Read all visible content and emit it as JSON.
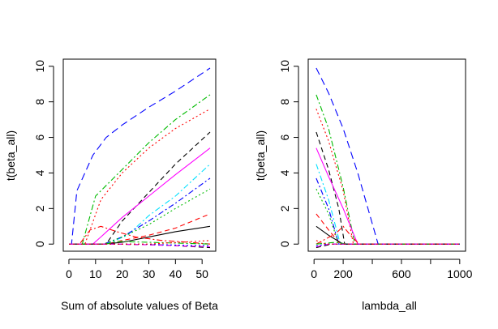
{
  "chart_data": [
    {
      "type": "line",
      "title": "",
      "xlabel": "Sum of absolute values of Beta",
      "ylabel": "t(beta_all)",
      "xlim": [
        0,
        53
      ],
      "ylim": [
        0,
        10
      ],
      "xticks": [
        0,
        10,
        20,
        30,
        40,
        50
      ],
      "yticks": [
        0,
        2,
        4,
        6,
        8,
        10
      ],
      "grid": false,
      "legend": "none",
      "series": [
        {
          "color": "#0000ff",
          "dash": "long",
          "points": [
            [
              0,
              0
            ],
            [
              1,
              0
            ],
            [
              3,
              3
            ],
            [
              6,
              4
            ],
            [
              9,
              5
            ],
            [
              14,
              6
            ],
            [
              20,
              6.7
            ],
            [
              30,
              7.7
            ],
            [
              40,
              8.6
            ],
            [
              53,
              9.9
            ]
          ]
        },
        {
          "color": "#00bb00",
          "dash": "dashdot",
          "points": [
            [
              0,
              0
            ],
            [
              5,
              0
            ],
            [
              10,
              2.7
            ],
            [
              20,
              4.2
            ],
            [
              30,
              5.7
            ],
            [
              40,
              7
            ],
            [
              53,
              8.4
            ]
          ]
        },
        {
          "color": "#ff0000",
          "dash": "dot",
          "points": [
            [
              0,
              0
            ],
            [
              6,
              0
            ],
            [
              12,
              2.5
            ],
            [
              20,
              4
            ],
            [
              30,
              5.4
            ],
            [
              40,
              6.5
            ],
            [
              53,
              7.6
            ]
          ]
        },
        {
          "color": "#000000",
          "dash": "dash",
          "points": [
            [
              0,
              0
            ],
            [
              14,
              0
            ],
            [
              20,
              1.3
            ],
            [
              30,
              2.9
            ],
            [
              40,
              4.5
            ],
            [
              53,
              6.3
            ]
          ]
        },
        {
          "color": "#ff00ff",
          "dash": "solid",
          "points": [
            [
              0,
              0
            ],
            [
              9,
              0
            ],
            [
              12,
              0.4
            ],
            [
              20,
              1.5
            ],
            [
              30,
              2.7
            ],
            [
              40,
              3.9
            ],
            [
              53,
              5.4
            ]
          ]
        },
        {
          "color": "#00e0ff",
          "dash": "dashdot",
          "points": [
            [
              0,
              0
            ],
            [
              14,
              0
            ],
            [
              22,
              0.5
            ],
            [
              30,
              1.6
            ],
            [
              40,
              2.7
            ],
            [
              53,
              4.5
            ]
          ]
        },
        {
          "color": "#0000ff",
          "dash": "dashdot",
          "points": [
            [
              0,
              0
            ],
            [
              13,
              0
            ],
            [
              20,
              0.4
            ],
            [
              30,
              1.3
            ],
            [
              40,
              2.3
            ],
            [
              53,
              3.7
            ]
          ]
        },
        {
          "color": "#00bb00",
          "dash": "dot",
          "points": [
            [
              0,
              0
            ],
            [
              13,
              0
            ],
            [
              20,
              0.4
            ],
            [
              30,
              1.1
            ],
            [
              40,
              2
            ],
            [
              53,
              3.1
            ]
          ]
        },
        {
          "color": "#ff0000",
          "dash": "dash",
          "points": [
            [
              0,
              0
            ],
            [
              14,
              0
            ],
            [
              20,
              0.2
            ],
            [
              30,
              0.5
            ],
            [
              40,
              0.9
            ],
            [
              53,
              1.7
            ]
          ]
        },
        {
          "color": "#000000",
          "dash": "solid",
          "points": [
            [
              0,
              0
            ],
            [
              13,
              0
            ],
            [
              20,
              0.1
            ],
            [
              30,
              0.4
            ],
            [
              40,
              0.7
            ],
            [
              53,
              1
            ]
          ]
        },
        {
          "color": "#ff0000",
          "dash": "dashdot",
          "points": [
            [
              0,
              0
            ],
            [
              4,
              0
            ],
            [
              8,
              0.8
            ],
            [
              12,
              1
            ],
            [
              18,
              0.7
            ],
            [
              25,
              0.4
            ],
            [
              35,
              0.2
            ],
            [
              45,
              0.1
            ],
            [
              53,
              0
            ]
          ]
        },
        {
          "color": "#00bb00",
          "dash": "dashdot",
          "points": [
            [
              0,
              0
            ],
            [
              14,
              0
            ],
            [
              18,
              0.15
            ],
            [
              30,
              0.1
            ],
            [
              53,
              0
            ]
          ]
        },
        {
          "color": "#000000",
          "dash": "dash",
          "points": [
            [
              0,
              0
            ],
            [
              15,
              0
            ],
            [
              35,
              -0.05
            ],
            [
              53,
              -0.2
            ]
          ]
        },
        {
          "color": "#ff00ff",
          "dash": "dash",
          "points": [
            [
              0,
              0
            ],
            [
              20,
              0
            ],
            [
              53,
              -0.15
            ]
          ]
        },
        {
          "color": "#0000ff",
          "dash": "dot",
          "points": [
            [
              0,
              0
            ],
            [
              25,
              0
            ],
            [
              53,
              -0.1
            ]
          ]
        },
        {
          "color": "#ff0000",
          "dash": "dot",
          "points": [
            [
              0,
              0
            ],
            [
              30,
              0
            ],
            [
              53,
              0.2
            ]
          ]
        }
      ]
    },
    {
      "type": "line",
      "title": "",
      "xlabel": "lambda_all",
      "ylabel": "t(beta_all)",
      "xlim": [
        0,
        1000
      ],
      "ylim": [
        0,
        10
      ],
      "xticks": [
        0,
        200,
        600,
        1000
      ],
      "xticks_minor": [
        400,
        800
      ],
      "yticks": [
        0,
        2,
        4,
        6,
        8,
        10
      ],
      "grid": false,
      "legend": "none",
      "series": [
        {
          "color": "#0000ff",
          "dash": "long",
          "points": [
            [
              15,
              9.9
            ],
            [
              100,
              8.5
            ],
            [
              200,
              6.5
            ],
            [
              300,
              4
            ],
            [
              440,
              0
            ],
            [
              1000,
              0
            ]
          ]
        },
        {
          "color": "#00bb00",
          "dash": "dashdot",
          "points": [
            [
              15,
              8.4
            ],
            [
              100,
              6.5
            ],
            [
              200,
              3.2
            ],
            [
              280,
              0
            ],
            [
              1000,
              0
            ]
          ]
        },
        {
          "color": "#ff0000",
          "dash": "dot",
          "points": [
            [
              15,
              7.6
            ],
            [
              100,
              5.8
            ],
            [
              200,
              3
            ],
            [
              270,
              0
            ],
            [
              1000,
              0
            ]
          ]
        },
        {
          "color": "#000000",
          "dash": "dash",
          "points": [
            [
              15,
              6.3
            ],
            [
              100,
              4.2
            ],
            [
              170,
              2
            ],
            [
              210,
              0
            ],
            [
              1000,
              0
            ]
          ]
        },
        {
          "color": "#ff00ff",
          "dash": "solid",
          "points": [
            [
              15,
              5.4
            ],
            [
              100,
              3.8
            ],
            [
              200,
              2
            ],
            [
              300,
              0
            ],
            [
              1000,
              0
            ]
          ]
        },
        {
          "color": "#00e0ff",
          "dash": "dashdot",
          "points": [
            [
              15,
              4.5
            ],
            [
              100,
              2.5
            ],
            [
              180,
              0
            ],
            [
              1000,
              0
            ]
          ]
        },
        {
          "color": "#0000ff",
          "dash": "dashdot",
          "points": [
            [
              15,
              3.7
            ],
            [
              100,
              2
            ],
            [
              170,
              0
            ],
            [
              1000,
              0
            ]
          ]
        },
        {
          "color": "#00bb00",
          "dash": "dot",
          "points": [
            [
              15,
              3.1
            ],
            [
              100,
              1.7
            ],
            [
              170,
              0
            ],
            [
              1000,
              0
            ]
          ]
        },
        {
          "color": "#ff0000",
          "dash": "dash",
          "points": [
            [
              15,
              1.7
            ],
            [
              100,
              0.8
            ],
            [
              180,
              0
            ],
            [
              1000,
              0
            ]
          ]
        },
        {
          "color": "#000000",
          "dash": "solid",
          "points": [
            [
              15,
              1
            ],
            [
              100,
              0.5
            ],
            [
              200,
              0
            ],
            [
              1000,
              0
            ]
          ]
        },
        {
          "color": "#ff0000",
          "dash": "dashdot",
          "points": [
            [
              15,
              0
            ],
            [
              150,
              0.6
            ],
            [
              200,
              1
            ],
            [
              250,
              0.5
            ],
            [
              310,
              0
            ],
            [
              1000,
              0
            ]
          ]
        },
        {
          "color": "#00bb00",
          "dash": "dashdot",
          "points": [
            [
              15,
              0
            ],
            [
              150,
              0.1
            ],
            [
              230,
              0
            ],
            [
              1000,
              0
            ]
          ]
        },
        {
          "color": "#000000",
          "dash": "dash",
          "points": [
            [
              15,
              -0.2
            ],
            [
              120,
              0
            ],
            [
              1000,
              0
            ]
          ]
        },
        {
          "color": "#ff00ff",
          "dash": "dash",
          "points": [
            [
              15,
              -0.15
            ],
            [
              100,
              0
            ],
            [
              1000,
              0
            ]
          ]
        },
        {
          "color": "#0000ff",
          "dash": "dot",
          "points": [
            [
              15,
              -0.1
            ],
            [
              90,
              0
            ],
            [
              1000,
              0
            ]
          ]
        },
        {
          "color": "#ff0000",
          "dash": "dot",
          "points": [
            [
              15,
              0.2
            ],
            [
              80,
              0
            ],
            [
              1000,
              0
            ]
          ]
        }
      ]
    }
  ]
}
